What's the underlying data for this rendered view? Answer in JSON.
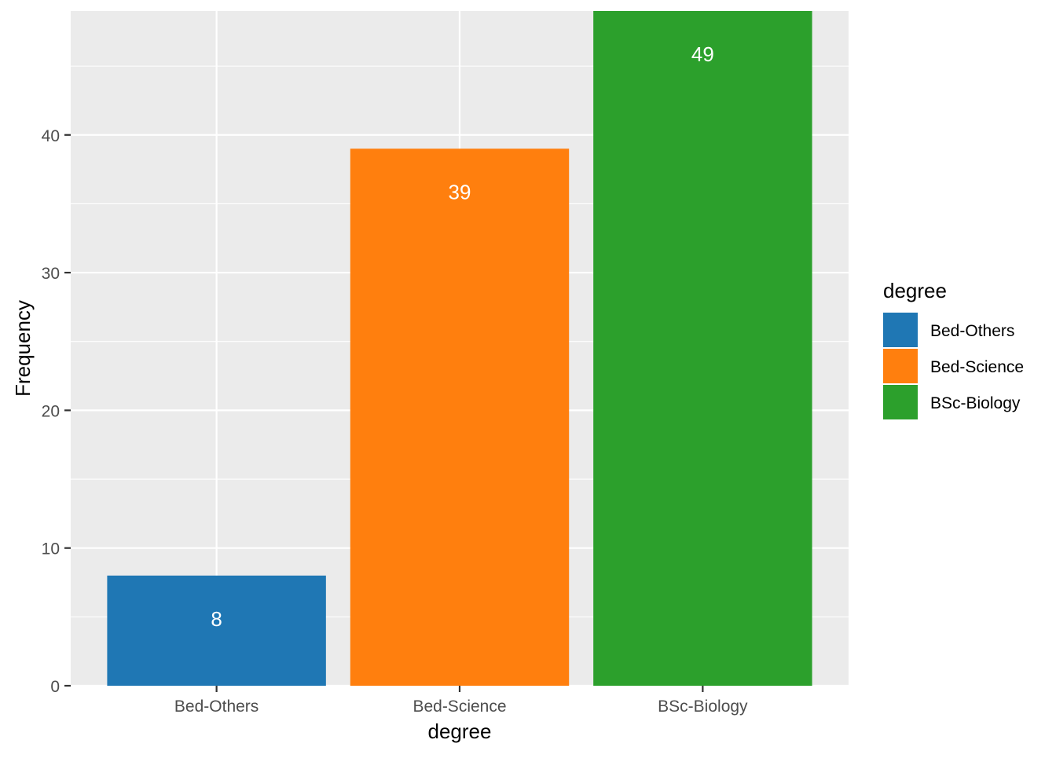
{
  "chart_data": {
    "type": "bar",
    "title": "",
    "xlabel": "degree",
    "ylabel": "Frequency",
    "categories": [
      "Bed-Others",
      "Bed-Science",
      "BSc-Biology"
    ],
    "values": [
      8,
      39,
      49
    ],
    "data_labels": [
      "8",
      "39",
      "49"
    ],
    "colors": [
      "#1F77B4",
      "#FF7F0E",
      "#2CA02C"
    ],
    "ylim": [
      0,
      49
    ],
    "yticks": [
      0,
      10,
      20,
      30,
      40
    ],
    "ytick_labels": [
      "0",
      "10",
      "20",
      "30",
      "40"
    ],
    "grid": true,
    "panel_background": "#EBEBEB",
    "legend": {
      "title": "degree",
      "placement": "right",
      "entries": [
        "Bed-Others",
        "Bed-Science",
        "BSc-Biology"
      ]
    }
  }
}
